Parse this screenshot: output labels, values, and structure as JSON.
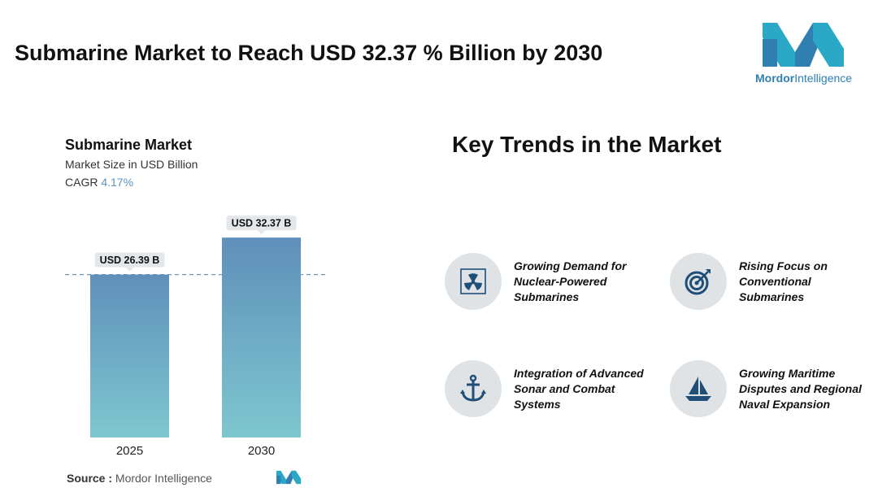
{
  "page": {
    "title": "Submarine Market to Reach USD 32.37 % Billion by 2030"
  },
  "logo": {
    "brand_bold": "Mordor",
    "brand_regular": "Intelligence",
    "colors": [
      "#2aa8c6",
      "#2f7fb0",
      "#1f5f94"
    ]
  },
  "chart_card": {
    "title": "Submarine Market",
    "subtitle": "Market Size in USD Billion",
    "cagr_label": "CAGR",
    "cagr_value": "4.17%"
  },
  "chart_data": {
    "type": "bar",
    "title": "Submarine Market",
    "ylabel": "Market Size in USD Billion",
    "categories": [
      "2025",
      "2030"
    ],
    "values": [
      26.39,
      32.37
    ],
    "data_labels": [
      "USD 26.39 B",
      "USD 32.37 B"
    ],
    "ylim": [
      0,
      34.5
    ],
    "grid": false,
    "reference_line_at": 26.39,
    "bar_gradient_top": "#5f8fba",
    "bar_gradient_bottom": "#7ec7cf"
  },
  "source": {
    "label": "Source :",
    "text": "Mordor Intelligence"
  },
  "trends": {
    "title": "Key Trends in the Market",
    "items": [
      {
        "text": "Growing Demand for Nuclear-Powered Submarines",
        "icon": "radiation-icon"
      },
      {
        "text": "Rising Focus on Conventional Submarines",
        "icon": "target-icon"
      },
      {
        "text": "Integration of Advanced Sonar and Combat Systems",
        "icon": "anchor-icon"
      },
      {
        "text": "Growing Maritime Disputes and Regional Naval Expansion",
        "icon": "sailboat-icon"
      }
    ],
    "icon_color": "#1f4e79",
    "icon_bg": "#dfe3e6"
  }
}
